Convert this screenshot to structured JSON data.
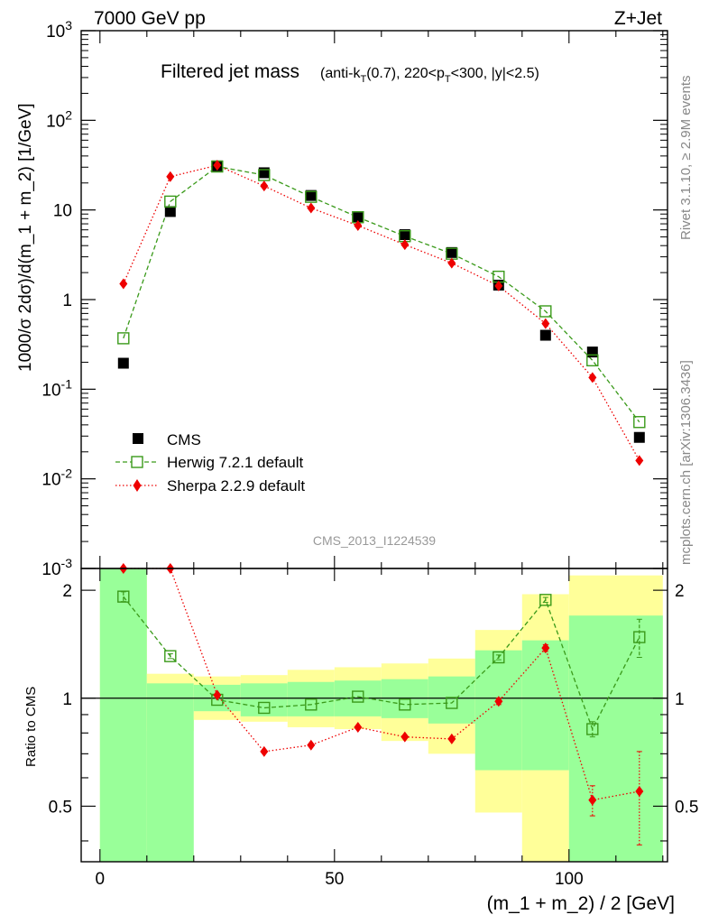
{
  "header": {
    "left": "7000 GeV pp",
    "right": "Z+Jet"
  },
  "title": {
    "main": "Filtered jet mass",
    "sub": "(anti-k_T(0.7), 220<p_T<300, |y|<2.5)"
  },
  "side_labels": {
    "events": "Rivet 3.1.10, ≥ 2.9M events",
    "source": "mcplots.cern.ch [arXiv:1306.3436]"
  },
  "watermark": "CMS_2013_I1224539",
  "chart_data": [
    {
      "type": "scatter",
      "title": "Filtered jet mass",
      "ylabel": "1000/σ 2dσ)/d(m_1 + m_2) [1/GeV]",
      "yscale": "log",
      "ylim": [
        0.001,
        1000
      ],
      "yticks": [
        "10^-3",
        "10^-2",
        "10^-1",
        "1",
        "10",
        "10^2",
        "10^3"
      ],
      "xlim": [
        -4,
        121
      ],
      "x": [
        5,
        15,
        25,
        35,
        45,
        55,
        65,
        75,
        85,
        95,
        105,
        115
      ],
      "legend_position": "lower-left",
      "series": [
        {
          "name": "CMS",
          "color": "#000000",
          "marker": "square",
          "values": [
            0.195,
            9.6,
            31,
            26,
            14.5,
            8.2,
            5.3,
            3.35,
            1.45,
            0.4,
            0.26,
            0.029
          ]
        },
        {
          "name": "Herwig 7.2.1 default",
          "color": "#3a9a1a",
          "marker": "open-square",
          "line": "dashed",
          "values": [
            0.37,
            12.4,
            30.5,
            24.5,
            14,
            8.3,
            5.1,
            3.25,
            1.8,
            0.74,
            0.21,
            0.043
          ]
        },
        {
          "name": "Sherpa 2.2.9 default",
          "color": "#ee0000",
          "marker": "diamond",
          "line": "dotted",
          "values": [
            1.5,
            23.5,
            31.5,
            18.5,
            10.5,
            6.7,
            4.1,
            2.55,
            1.42,
            0.54,
            0.135,
            0.016
          ]
        }
      ]
    },
    {
      "type": "scatter",
      "ylabel": "Ratio to CMS",
      "xlabel": "(m_1 + m_2) / 2 [GeV]",
      "xlim": [
        -4,
        121
      ],
      "xticks": [
        0,
        50,
        100
      ],
      "ylim": [
        0.35,
        2.3
      ],
      "yticks": [
        0.5,
        1,
        2
      ],
      "x": [
        5,
        15,
        25,
        35,
        45,
        55,
        65,
        75,
        85,
        95,
        105,
        115
      ],
      "reference_line": 1,
      "bands": {
        "bins": [
          [
            0,
            10
          ],
          [
            10,
            20
          ],
          [
            20,
            30
          ],
          [
            30,
            40
          ],
          [
            40,
            50
          ],
          [
            50,
            60
          ],
          [
            60,
            70
          ],
          [
            70,
            80
          ],
          [
            80,
            90
          ],
          [
            90,
            100
          ],
          [
            100,
            120
          ]
        ],
        "stat": {
          "color": "#99ff99",
          "lo": [
            0.35,
            0.35,
            0.92,
            0.89,
            0.89,
            0.89,
            0.88,
            0.85,
            0.63,
            0.63,
            0.35
          ],
          "hi": [
            2.3,
            1.1,
            1.09,
            1.1,
            1.11,
            1.12,
            1.13,
            1.15,
            1.36,
            1.45,
            1.7
          ]
        },
        "total": {
          "color": "#ffff99",
          "lo": [
            0.35,
            0.81,
            0.87,
            0.86,
            0.83,
            0.82,
            0.76,
            0.7,
            0.48,
            0.35,
            0.35
          ],
          "hi": [
            2.3,
            1.17,
            1.15,
            1.16,
            1.2,
            1.22,
            1.25,
            1.29,
            1.55,
            1.95,
            2.2
          ]
        }
      },
      "series": [
        {
          "name": "Herwig 7.2.1 default",
          "color": "#3a9a1a",
          "marker": "open-square",
          "line": "dashed",
          "values": [
            1.92,
            1.31,
            0.99,
            0.94,
            0.96,
            1.01,
            0.96,
            0.97,
            1.3,
            1.88,
            0.82,
            1.48
          ],
          "err": [
            0.06,
            0.02,
            0.01,
            0.01,
            0.01,
            0.01,
            0.01,
            0.01,
            0.02,
            0.03,
            0.04,
            0.18
          ]
        },
        {
          "name": "Sherpa 2.2.9 default",
          "color": "#ee0000",
          "marker": "diamond",
          "line": "dotted",
          "values": [
            2.3,
            2.3,
            1.02,
            0.71,
            0.74,
            0.83,
            0.78,
            0.77,
            0.98,
            1.38,
            0.52,
            0.55
          ],
          "err": [
            0,
            0,
            0.01,
            0.01,
            0.01,
            0.01,
            0.01,
            0.01,
            0.02,
            0.03,
            0.05,
            0.16
          ]
        }
      ]
    }
  ]
}
